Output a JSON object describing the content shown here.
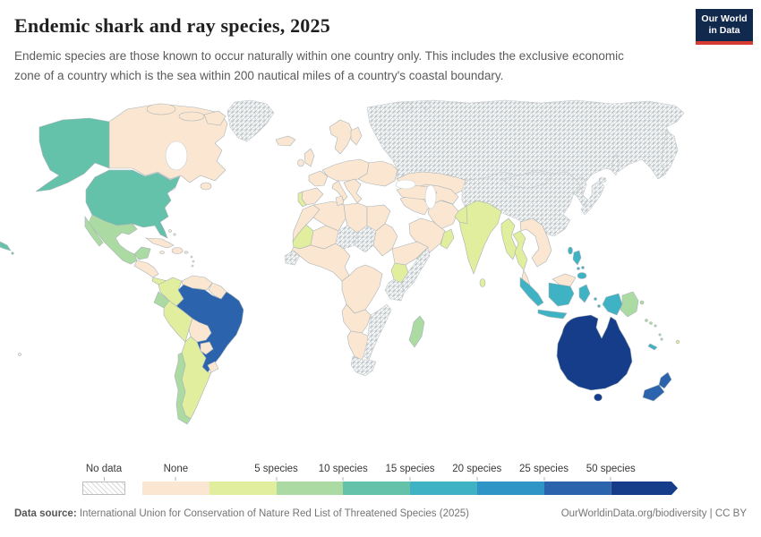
{
  "header": {
    "title": "Endemic shark and ray species, 2025",
    "subtitle": "Endemic species are those known to occur naturally within one country only. This includes the exclusive economic zone of a country which is the sea within 200 nautical miles of a country's coastal boundary.",
    "logo_line1": "Our World",
    "logo_line2": "in Data",
    "logo_bg_color": "#12294e",
    "logo_accent_color": "#d73c32"
  },
  "footer": {
    "source_label": "Data source:",
    "source_value": " International Union for Conservation of Nature Red List of Threatened Species (2025)",
    "link_text": "OurWorldinData.org/biodiversity | CC BY"
  },
  "chart_data": {
    "type": "choropleth_map",
    "title": "Endemic shark and ray species, 2025",
    "year": "2025",
    "unit": "species",
    "bin_colors": {
      "none": "#fbe7d1",
      "0-5": "#e0ee9d",
      "5-10": "#abdba3",
      "10-15": "#64c1aa",
      "15-20": "#3fb2c3",
      "20-25": "#2f95c6",
      "25-50": "#2b64ad",
      "50-plus": "#153d8a"
    },
    "map": {
      "ocean_color": "#ffffff",
      "border_color": "#a9b3b7",
      "no_data_stroke": "#c4c9cc",
      "no_data_hatch_color": "#d9d9d9"
    },
    "legend": {
      "no_data_label": "No data",
      "segments": [
        {
          "bin": "none",
          "label": "None"
        },
        {
          "bin": "0-5",
          "label": "5 species"
        },
        {
          "bin": "5-10",
          "label": "10 species"
        },
        {
          "bin": "10-15",
          "label": "15 species"
        },
        {
          "bin": "15-20",
          "label": "20 species"
        },
        {
          "bin": "20-25",
          "label": "25 species"
        },
        {
          "bin": "25-50",
          "label": "50 species"
        },
        {
          "bin": "50-plus",
          "label": null
        }
      ]
    },
    "countries": {
      "canada": "none",
      "greenland": "no-data",
      "united-states": "10-15",
      "mexico": "5-10",
      "central-america": "none",
      "costa-rica-panama": "0-5",
      "cuba": "none",
      "hispaniola": "none",
      "jamaica": "none",
      "puerto-rico": "none",
      "lesser-antilles": "none",
      "bahamas": "none",
      "colombia": "0-5",
      "venezuela": "none",
      "guyana-suriname": "none",
      "ecuador": "5-10",
      "peru": "0-5",
      "brazil": "25-50",
      "bolivia": "none",
      "paraguay": "none",
      "uruguay": "none",
      "argentina": "0-5",
      "chile": "5-10",
      "iceland": "none",
      "united-kingdom": "none",
      "ireland": "none",
      "norway-sweden": "none",
      "finland": "none",
      "france": "none",
      "spain": "none",
      "portugal": "0-5",
      "central-europe": "none",
      "eastern-europe": "none",
      "italy": "none",
      "balkans-greece": "none",
      "turkey": "none",
      "morocco": "none",
      "algeria": "none",
      "tunisia": "none",
      "libya": "none",
      "egypt": "none",
      "mauritania": "0-5",
      "mali": "none",
      "niger": "no-data",
      "chad": "no-data",
      "sudan": "none",
      "senegal": "no-data",
      "west-africa": "none",
      "ethiopia": "none",
      "somalia": "no-data",
      "kenya": "0-5",
      "central-africa": "none",
      "tanzania": "no-data",
      "angola-zambia": "none",
      "namibia-botswana": "none",
      "south-africa": "no-data",
      "mozambique": "no-data",
      "madagascar": "5-10",
      "saudi-arabia": "none",
      "yemen": "5-10",
      "oman": "0-5",
      "iraq-syria": "none",
      "iran": "none",
      "central-asia": "none",
      "kazakhstan": "none",
      "pakistan": "0-5",
      "india": "0-5",
      "sri-lanka": "0-5",
      "myanmar": "0-5",
      "thailand": "0-5",
      "malaysia": "none",
      "indochina": "none",
      "china": "no-data",
      "mongolia": "no-data",
      "korea": "no-data",
      "japan": "no-data",
      "taiwan": "15-20",
      "philippines": "15-20",
      "russia": "no-data",
      "indonesia": "15-20",
      "papua-new-guinea": "5-10",
      "solomon-islands": "5-10",
      "vanuatu": "5-10",
      "new-caledonia": "15-20",
      "fiji": "0-5",
      "australia": "50-plus",
      "new-zealand": "25-50",
      "french-polynesia": "none"
    }
  }
}
